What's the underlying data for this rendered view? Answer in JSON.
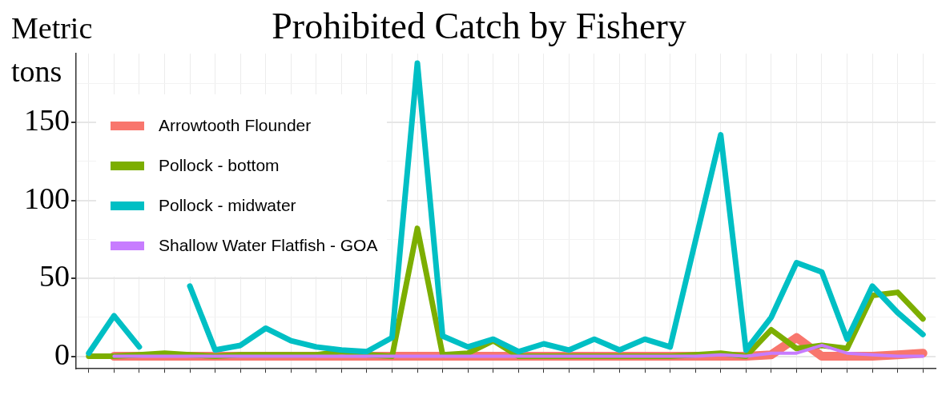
{
  "chart_data": {
    "type": "line",
    "title": "Prohibited Catch by Fishery",
    "ylabel": "Metric tons",
    "categories": [
      null,
      null,
      null,
      null,
      null,
      null,
      null,
      null,
      null,
      null,
      null,
      null,
      null,
      null,
      null,
      null,
      null,
      null,
      null,
      null,
      null,
      null,
      null,
      null,
      null,
      null,
      null,
      null,
      null,
      null,
      null,
      null,
      null,
      null
    ],
    "series": [
      {
        "name": "Arrowtooth Flounder",
        "color": "#f8766d",
        "values": [
          null,
          0,
          0,
          0,
          0,
          0,
          0,
          0,
          0,
          0,
          0,
          0,
          0,
          0,
          0,
          0,
          0,
          0,
          0,
          0,
          0,
          0,
          0,
          0,
          0,
          0,
          0,
          1,
          12,
          0,
          0,
          0,
          1,
          2
        ]
      },
      {
        "name": "Pollock - bottom",
        "color": "#7cae00",
        "values": [
          0,
          0,
          1,
          2,
          1,
          0,
          1,
          1,
          1,
          1,
          3,
          1,
          0,
          82,
          1,
          2,
          10,
          0,
          0,
          0,
          0,
          0,
          0,
          0,
          1,
          2,
          0,
          17,
          5,
          7,
          5,
          39,
          41,
          24
        ]
      },
      {
        "name": "Pollock - midwater",
        "color": "#00bfc4",
        "values": [
          2,
          26,
          6,
          null,
          45,
          4,
          7,
          18,
          10,
          6,
          4,
          3,
          12,
          188,
          13,
          6,
          11,
          3,
          8,
          4,
          11,
          4,
          11,
          6,
          74,
          142,
          4,
          25,
          60,
          54,
          11,
          45,
          28,
          14
        ]
      },
      {
        "name": "Shallow Water Flatfish - GOA",
        "color": "#c77cff",
        "values": [
          null,
          0,
          0,
          0,
          0,
          0,
          0,
          0,
          0,
          0,
          0,
          0,
          0,
          0,
          0,
          0,
          0,
          0,
          0,
          0,
          0,
          0,
          0,
          0,
          0,
          1,
          0,
          2,
          2,
          7,
          2,
          1,
          0,
          0
        ]
      }
    ],
    "ylim": [
      -8,
      194
    ],
    "yticks": [
      0,
      {
        "value": 25,
        "label": null
      },
      50,
      {
        "value": 75,
        "label": null
      },
      100,
      {
        "value": 125,
        "label": null
      },
      150,
      {
        "value": 175,
        "label": null
      }
    ],
    "grid": true,
    "legend": "top left",
    "line_style": "solid",
    "marker": "none"
  }
}
